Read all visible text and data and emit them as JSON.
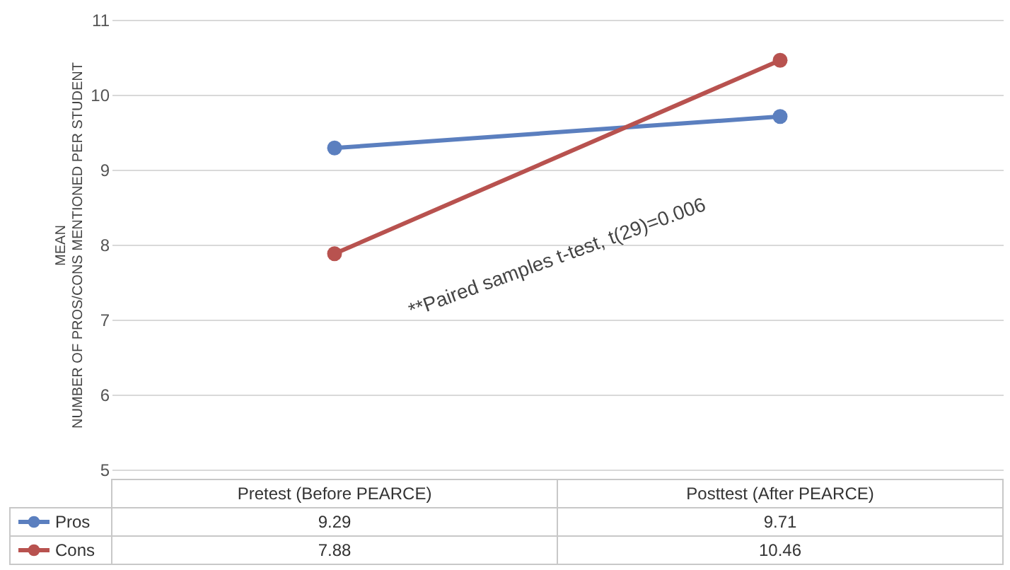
{
  "chart_data": {
    "type": "line",
    "categories": [
      "Pretest (Before PEARCE)",
      "Posttest (After PEARCE)"
    ],
    "series": [
      {
        "name": "Pros",
        "color": "#5b7fbf",
        "values": [
          9.29,
          9.71
        ]
      },
      {
        "name": "Cons",
        "color": "#b8524f",
        "values": [
          7.88,
          10.46
        ]
      }
    ],
    "ylabel": "MEAN\nNUMBER OF PROS/CONS MENTIONED PER STUDENT",
    "ylim": [
      5,
      11
    ],
    "yticks": [
      5,
      6,
      7,
      8,
      9,
      10,
      11
    ],
    "grid": "y",
    "marker": "circle",
    "line_style": "solid",
    "data_labels": true,
    "legend": "bottom left",
    "annotations": [
      "**Paired samples t-test, t(29)=0.006"
    ]
  }
}
